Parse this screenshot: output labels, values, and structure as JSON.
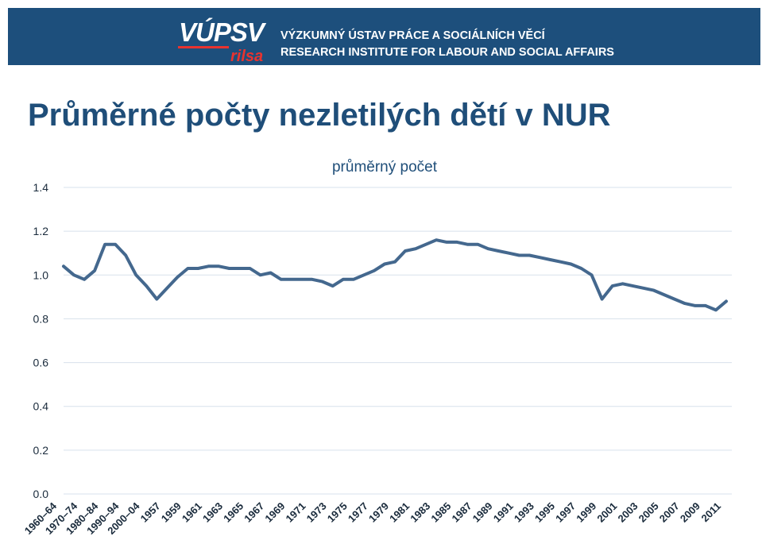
{
  "header": {
    "logo_main": "VÚPSV",
    "logo_sub": "rilsa",
    "institute_cz": "VÝZKUMNÝ ÚSTAV PRÁCE A SOCIÁLNÍCH VĚCÍ",
    "institute_en": "RESEARCH INSTITUTE FOR LABOUR AND SOCIAL AFFAIRS"
  },
  "page_title": "Průměrné počty nezletilých dětí v NUR",
  "colors": {
    "banner": "#1d4f7c",
    "title": "#1f4e79",
    "series": "#44688e",
    "grid": "#d7e1ec",
    "logo_accent": "#e8332f"
  },
  "chart_data": {
    "type": "line",
    "title": "průměrný počet",
    "ylim": [
      0,
      1.4
    ],
    "y_ticks": [
      "0.0",
      "0.2",
      "0.4",
      "0.6",
      "0.8",
      "1.0",
      "1.2",
      "1.4"
    ],
    "grid": true,
    "x_labels": [
      "1960–64",
      "1970–74",
      "1980–84",
      "1990–94",
      "2000–04",
      "1957",
      "1959",
      "1961",
      "1963",
      "1965",
      "1967",
      "1969",
      "1971",
      "1973",
      "1975",
      "1977",
      "1979",
      "1981",
      "1983",
      "1985",
      "1987",
      "1989",
      "1991",
      "1993",
      "1995",
      "1997",
      "1999",
      "2001",
      "2003",
      "2005",
      "2007",
      "2009",
      "2011"
    ],
    "series": [
      {
        "name": "",
        "values": [
          1.04,
          1.0,
          0.98,
          1.02,
          1.14,
          1.14,
          1.09,
          1.0,
          0.95,
          0.89,
          0.94,
          0.99,
          1.03,
          1.03,
          1.04,
          1.04,
          1.03,
          1.03,
          1.03,
          1.0,
          1.01,
          0.98,
          0.98,
          0.98,
          0.98,
          0.97,
          0.95,
          0.98,
          0.98,
          1.0,
          1.02,
          1.05,
          1.06,
          1.11,
          1.12,
          1.14,
          1.16,
          1.15,
          1.15,
          1.14,
          1.14,
          1.12,
          1.11,
          1.1,
          1.09,
          1.09,
          1.08,
          1.07,
          1.06,
          1.05,
          1.03,
          1.0,
          0.89,
          0.95,
          0.96,
          0.95,
          0.94,
          0.93,
          0.91,
          0.89,
          0.87,
          0.86,
          0.86,
          0.84,
          0.88
        ]
      }
    ]
  }
}
